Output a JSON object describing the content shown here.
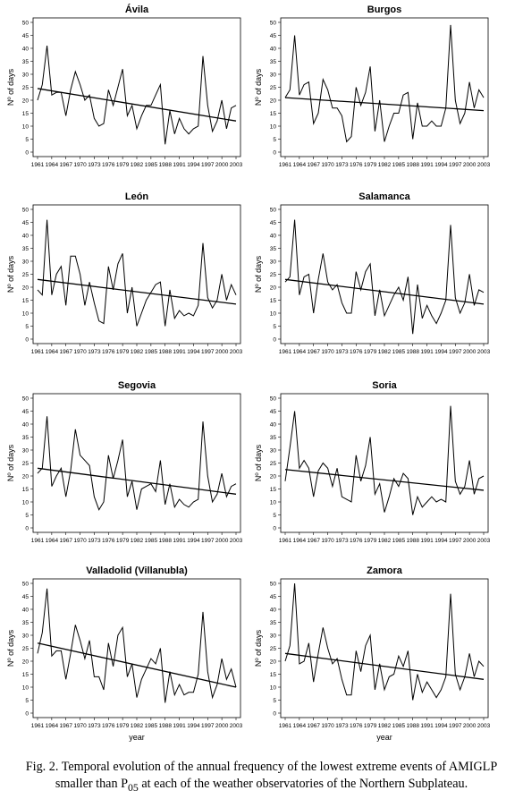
{
  "caption": {
    "prefix": "Fig. 2. Temporal evolution of the annual frequency of the lowest extreme events of AMIGLP smaller than P",
    "sub": "05",
    "suffix": " at each of the weather observatories of the Northern Subplateau."
  },
  "chart_data": [
    {
      "type": "line",
      "title": "Ávila",
      "xlabel": "",
      "ylabel": "Nº of days",
      "xlim": [
        1961,
        2003
      ],
      "ylim": [
        0,
        50
      ],
      "yticks": [
        0,
        5,
        10,
        15,
        20,
        25,
        30,
        35,
        40,
        45,
        50
      ],
      "xticks": [
        1961,
        1964,
        1967,
        1970,
        1973,
        1976,
        1979,
        1982,
        1985,
        1988,
        1991,
        1994,
        1997,
        2000,
        2003
      ],
      "series": [
        {
          "values": [
            20,
            26,
            41,
            22,
            23,
            23,
            14,
            24,
            31,
            26,
            20,
            22,
            13,
            10,
            11,
            24,
            18,
            25,
            32,
            14,
            18,
            9,
            14,
            18,
            18,
            22,
            26,
            3,
            16,
            7,
            13,
            9,
            7,
            9,
            10,
            37,
            18,
            8,
            12,
            20,
            9,
            17,
            18
          ]
        }
      ],
      "trend": [
        24.5,
        12.0
      ],
      "grid": false
    },
    {
      "type": "line",
      "title": "Burgos",
      "xlabel": "",
      "ylabel": "Nº of days",
      "xlim": [
        1961,
        2003
      ],
      "ylim": [
        0,
        50
      ],
      "yticks": [
        0,
        5,
        10,
        15,
        20,
        25,
        30,
        35,
        40,
        45,
        50
      ],
      "xticks": [
        1961,
        1964,
        1967,
        1970,
        1973,
        1976,
        1979,
        1982,
        1985,
        1988,
        1991,
        1994,
        1997,
        2000,
        2003
      ],
      "series": [
        {
          "values": [
            21,
            24,
            45,
            22,
            26,
            27,
            11,
            15,
            28,
            24,
            17,
            17,
            14,
            4,
            6,
            25,
            18,
            23,
            33,
            8,
            20,
            4,
            10,
            15,
            15,
            22,
            23,
            5,
            19,
            10,
            10,
            12,
            10,
            10,
            17,
            49,
            20,
            11,
            15,
            27,
            17,
            24,
            21
          ]
        }
      ],
      "trend": [
        21.0,
        16.0
      ],
      "grid": false
    },
    {
      "type": "line",
      "title": "León",
      "xlabel": "",
      "ylabel": "Nº of days",
      "xlim": [
        1961,
        2003
      ],
      "ylim": [
        0,
        50
      ],
      "yticks": [
        0,
        5,
        10,
        15,
        20,
        25,
        30,
        35,
        40,
        45,
        50
      ],
      "xticks": [
        1961,
        1964,
        1967,
        1970,
        1973,
        1976,
        1979,
        1982,
        1985,
        1988,
        1991,
        1994,
        1997,
        2000,
        2003
      ],
      "series": [
        {
          "values": [
            19,
            17,
            46,
            17,
            25,
            28,
            13,
            32,
            32,
            25,
            13,
            22,
            14,
            7,
            6,
            28,
            19,
            29,
            33,
            10,
            20,
            5,
            10,
            15,
            18,
            21,
            22,
            5,
            19,
            8,
            11,
            9,
            10,
            9,
            13,
            37,
            16,
            12,
            15,
            25,
            15,
            21,
            17
          ]
        }
      ],
      "trend": [
        23.0,
        13.5
      ],
      "grid": false
    },
    {
      "type": "line",
      "title": "Salamanca",
      "xlabel": "",
      "ylabel": "Nº of days",
      "xlim": [
        1961,
        2003
      ],
      "ylim": [
        0,
        50
      ],
      "yticks": [
        0,
        5,
        10,
        15,
        20,
        25,
        30,
        35,
        40,
        45,
        50
      ],
      "xticks": [
        1961,
        1964,
        1967,
        1970,
        1973,
        1976,
        1979,
        1982,
        1985,
        1988,
        1991,
        1994,
        1997,
        2000,
        2003
      ],
      "series": [
        {
          "values": [
            22,
            24,
            46,
            17,
            24,
            25,
            10,
            23,
            33,
            22,
            19,
            21,
            14,
            10,
            10,
            26,
            19,
            26,
            29,
            9,
            19,
            9,
            13,
            17,
            20,
            15,
            24,
            2,
            21,
            8,
            13,
            9,
            6,
            10,
            15,
            44,
            16,
            10,
            14,
            25,
            13,
            19,
            18
          ]
        }
      ],
      "trend": [
        23.0,
        13.5
      ],
      "grid": false
    },
    {
      "type": "line",
      "title": "Segovia",
      "xlabel": "",
      "ylabel": "Nº of days",
      "xlim": [
        1961,
        2003
      ],
      "ylim": [
        0,
        50
      ],
      "yticks": [
        0,
        5,
        10,
        15,
        20,
        25,
        30,
        35,
        40,
        45,
        50
      ],
      "xticks": [
        1961,
        1964,
        1967,
        1970,
        1973,
        1976,
        1979,
        1982,
        1985,
        1988,
        1991,
        1994,
        1997,
        2000,
        2003
      ],
      "series": [
        {
          "values": [
            21,
            23,
            43,
            16,
            20,
            23,
            12,
            22,
            38,
            28,
            26,
            24,
            12,
            7,
            10,
            28,
            19,
            26,
            34,
            12,
            18,
            7,
            15,
            16,
            17,
            14,
            26,
            9,
            17,
            8,
            11,
            9,
            8,
            10,
            11,
            41,
            20,
            10,
            13,
            21,
            12,
            16,
            17
          ]
        }
      ],
      "trend": [
        23.0,
        13.0
      ],
      "grid": false
    },
    {
      "type": "line",
      "title": "Soria",
      "xlabel": "",
      "ylabel": "Nº of days",
      "xlim": [
        1961,
        2003
      ],
      "ylim": [
        0,
        50
      ],
      "yticks": [
        0,
        5,
        10,
        15,
        20,
        25,
        30,
        35,
        40,
        45,
        50
      ],
      "xticks": [
        1961,
        1964,
        1967,
        1970,
        1973,
        1976,
        1979,
        1982,
        1985,
        1988,
        1991,
        1994,
        1997,
        2000,
        2003
      ],
      "series": [
        {
          "values": [
            18,
            31,
            45,
            23,
            26,
            23,
            12,
            22,
            25,
            23,
            16,
            23,
            12,
            11,
            10,
            28,
            18,
            24,
            35,
            13,
            17,
            6,
            12,
            19,
            16,
            21,
            19,
            5,
            12,
            8,
            10,
            12,
            10,
            11,
            10,
            47,
            18,
            13,
            16,
            26,
            13,
            19,
            20
          ]
        }
      ],
      "trend": [
        22.5,
        14.5
      ],
      "grid": false
    },
    {
      "type": "line",
      "title": "Valladolid (Villanubla)",
      "xlabel": "year",
      "ylabel": "Nº of days",
      "xlim": [
        1961,
        2003
      ],
      "ylim": [
        0,
        50
      ],
      "yticks": [
        0,
        5,
        10,
        15,
        20,
        25,
        30,
        35,
        40,
        45,
        50
      ],
      "xticks": [
        1961,
        1964,
        1967,
        1970,
        1973,
        1976,
        1979,
        1982,
        1985,
        1988,
        1991,
        1994,
        1997,
        2000,
        2003
      ],
      "series": [
        {
          "values": [
            23,
            31,
            48,
            22,
            24,
            24,
            13,
            23,
            34,
            28,
            21,
            28,
            14,
            14,
            9,
            27,
            18,
            30,
            33,
            14,
            19,
            6,
            13,
            17,
            21,
            19,
            25,
            4,
            16,
            7,
            11,
            7,
            8,
            8,
            15,
            39,
            16,
            6,
            11,
            21,
            13,
            17,
            10
          ]
        }
      ],
      "trend": [
        27.0,
        10.0
      ],
      "grid": false
    },
    {
      "type": "line",
      "title": "Zamora",
      "xlabel": "year",
      "ylabel": "Nº of days",
      "xlim": [
        1961,
        2003
      ],
      "ylim": [
        0,
        50
      ],
      "yticks": [
        0,
        5,
        10,
        15,
        20,
        25,
        30,
        35,
        40,
        45,
        50
      ],
      "xticks": [
        1961,
        1964,
        1967,
        1970,
        1973,
        1976,
        1979,
        1982,
        1985,
        1988,
        1991,
        1994,
        1997,
        2000,
        2003
      ],
      "series": [
        {
          "values": [
            20,
            26,
            50,
            19,
            20,
            27,
            12,
            23,
            33,
            25,
            19,
            21,
            13,
            7,
            7,
            24,
            16,
            26,
            30,
            9,
            19,
            9,
            14,
            15,
            22,
            18,
            24,
            5,
            15,
            8,
            12,
            9,
            6,
            9,
            14,
            46,
            15,
            9,
            14,
            23,
            14,
            20,
            18
          ]
        }
      ],
      "trend": [
        23.0,
        13.0
      ],
      "grid": false
    }
  ]
}
